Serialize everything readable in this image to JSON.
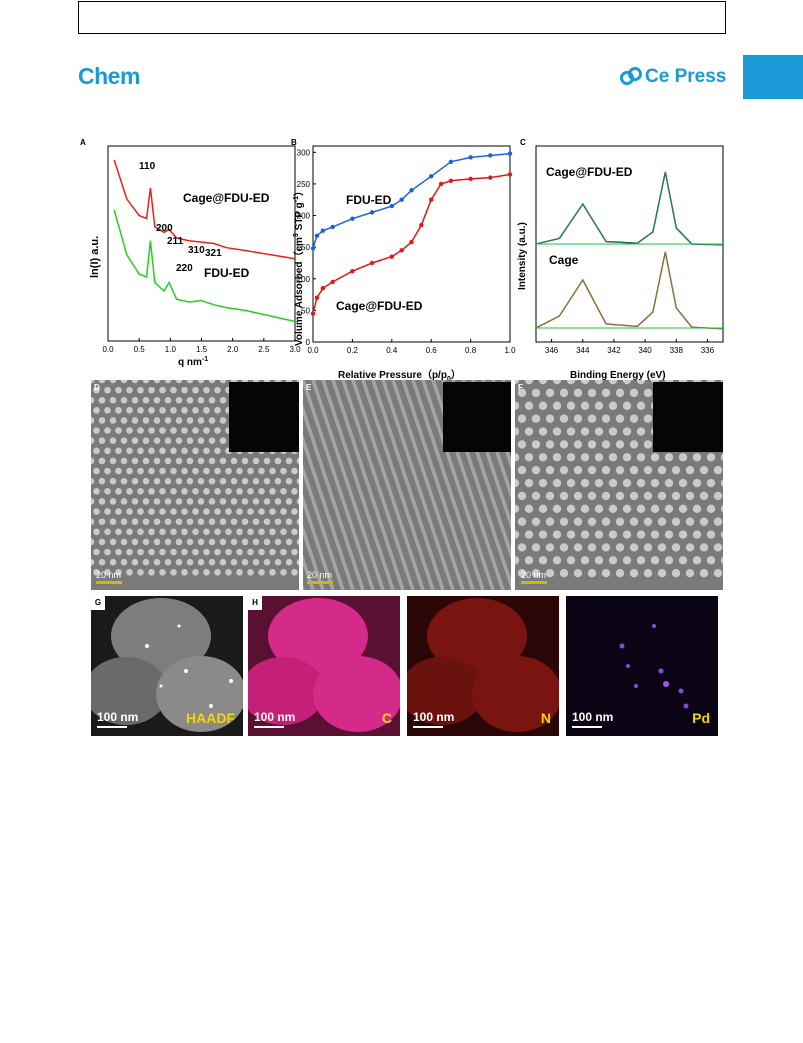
{
  "header": {
    "journal": "Chem",
    "publisher": "Ce Press"
  },
  "panels": {
    "A": {
      "label": "A",
      "xlabel": "q  nm",
      "xlabel_sup": "-1",
      "ylabel": "ln(I) a.u.",
      "series1": "Cage@FDU-ED",
      "series2": "FDU-ED",
      "peaks": [
        "110",
        "200",
        "211",
        "310",
        "321",
        "220"
      ],
      "xticks": [
        "0.0",
        "0.5",
        "1.0",
        "1.5",
        "2.0",
        "2.5",
        "3.0"
      ]
    },
    "B": {
      "label": "B",
      "xlabel": "Relative Pressure（p/p",
      "xlabel_sub": "0",
      "xlabel_end": "）",
      "ylabel": "Volume Adsorbed（cm",
      "ylabel_sup": "3",
      "ylabel_mid": " STP g",
      "ylabel_sup2": "-1",
      "ylabel_end": "）",
      "series1": "FDU-ED",
      "series2": "Cage@FDU-ED",
      "xticks": [
        "0.0",
        "0.2",
        "0.4",
        "0.6",
        "0.8",
        "1.0"
      ],
      "yticks": [
        "0",
        "50",
        "100",
        "150",
        "200",
        "250",
        "300"
      ]
    },
    "C": {
      "label": "C",
      "xlabel": "Binding Energy (eV)",
      "ylabel": "Intensity (a.u.)",
      "series1": "Cage@FDU-ED",
      "series2": "Cage",
      "xticks": [
        "346",
        "344",
        "342",
        "340",
        "338",
        "336"
      ]
    },
    "D": {
      "label": "D",
      "scale": "20 nm"
    },
    "E": {
      "label": "E",
      "scale": "20 nm"
    },
    "F": {
      "label": "F",
      "scale": "20 nm"
    },
    "G": {
      "label": "G",
      "scale": "100 nm",
      "element": "HAADF"
    },
    "H": {
      "label": "H",
      "maps": [
        {
          "scale": "100 nm",
          "element": "C"
        },
        {
          "scale": "100 nm",
          "element": "N"
        },
        {
          "scale": "100 nm",
          "element": "Pd"
        }
      ]
    }
  },
  "chart_data": [
    {
      "type": "line",
      "title": "",
      "xlabel": "q nm-1",
      "ylabel": "ln(I) a.u.",
      "xlim": [
        0,
        3
      ],
      "series": [
        {
          "name": "Cage@FDU-ED",
          "x": [
            0.1,
            0.3,
            0.5,
            0.62,
            0.68,
            0.75,
            0.9,
            0.98,
            1.1,
            1.3,
            1.5,
            1.7,
            1.9,
            2.2,
            2.6,
            3.0
          ],
          "y": [
            10.0,
            8.6,
            8.0,
            7.9,
            9.0,
            7.6,
            7.4,
            7.5,
            7.2,
            7.1,
            7.05,
            7.0,
            6.85,
            6.75,
            6.6,
            6.45
          ],
          "color": "#e8211e"
        },
        {
          "name": "FDU-ED",
          "x": [
            0.1,
            0.3,
            0.5,
            0.62,
            0.68,
            0.75,
            0.9,
            0.98,
            1.1,
            1.3,
            1.5,
            1.7,
            1.9,
            2.2,
            2.6,
            3.0
          ],
          "y": [
            8.2,
            6.6,
            5.9,
            5.8,
            7.1,
            5.6,
            5.3,
            5.6,
            5.0,
            4.9,
            4.95,
            4.8,
            4.7,
            4.6,
            4.4,
            4.2
          ],
          "color": "#22d01e"
        }
      ]
    },
    {
      "type": "line",
      "title": "",
      "xlabel": "Relative Pressure (p/p0)",
      "ylabel": "Volume Adsorbed (cm3 STP g-1)",
      "xlim": [
        0,
        1
      ],
      "ylim": [
        0,
        310
      ],
      "series": [
        {
          "name": "FDU-ED",
          "x": [
            0.0,
            0.02,
            0.05,
            0.1,
            0.2,
            0.3,
            0.4,
            0.45,
            0.5,
            0.6,
            0.7,
            0.8,
            0.9,
            1.0
          ],
          "y": [
            148,
            168,
            176,
            182,
            195,
            205,
            215,
            225,
            240,
            262,
            285,
            292,
            295,
            298
          ],
          "color": "#2060e0"
        },
        {
          "name": "Cage@FDU-ED",
          "x": [
            0.0,
            0.02,
            0.05,
            0.1,
            0.2,
            0.3,
            0.4,
            0.45,
            0.5,
            0.55,
            0.6,
            0.65,
            0.7,
            0.8,
            0.9,
            1.0
          ],
          "y": [
            45,
            70,
            85,
            95,
            112,
            125,
            135,
            145,
            158,
            185,
            225,
            250,
            255,
            258,
            260,
            265
          ],
          "color": "#e01818"
        }
      ]
    },
    {
      "type": "line",
      "title": "",
      "xlabel": "Binding Energy (eV)",
      "ylabel": "Intensity (a.u.)",
      "xlim": [
        347,
        335
      ],
      "series": [
        {
          "name": "Cage@FDU-ED",
          "x": [
            347,
            345.5,
            344,
            342.5,
            340.5,
            339.5,
            338.7,
            338,
            337,
            335
          ],
          "y": [
            0.05,
            0.12,
            0.55,
            0.08,
            0.06,
            0.2,
            0.95,
            0.25,
            0.05,
            0.04
          ],
          "color": "#1a1a6e"
        },
        {
          "name": "Cage",
          "x": [
            347,
            345.5,
            344,
            342.5,
            340.5,
            339.5,
            338.7,
            338,
            337,
            335
          ],
          "y": [
            0.05,
            0.2,
            0.65,
            0.1,
            0.07,
            0.25,
            1.0,
            0.3,
            0.06,
            0.04
          ],
          "color": "#d02020"
        }
      ]
    }
  ]
}
